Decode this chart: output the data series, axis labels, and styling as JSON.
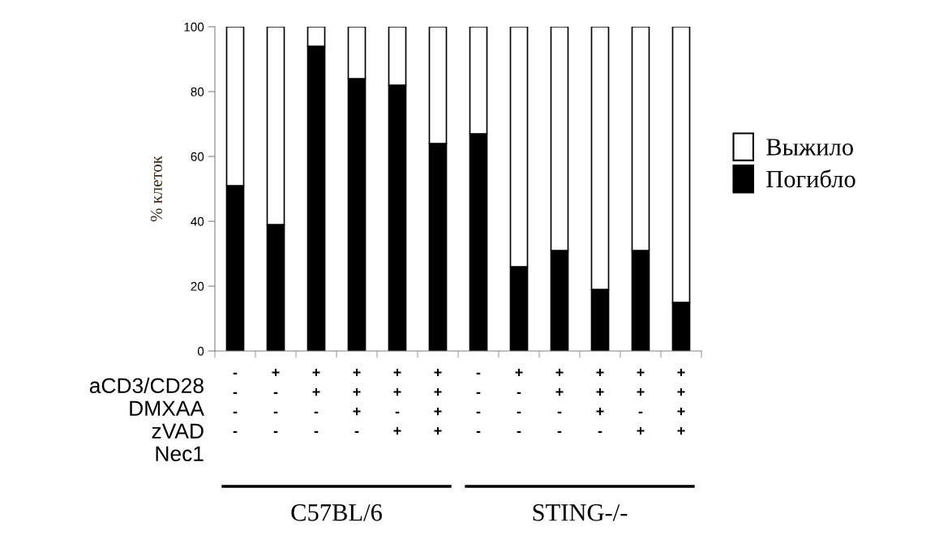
{
  "chart_data": {
    "type": "bar",
    "stacked": true,
    "ylabel": "% клеток",
    "categories": [
      "-\n-\n-\n-",
      "+\n-\n-\n-",
      "+\n+\n-\n-",
      "+\n+\n+\n-",
      "+\n+\n-\n+",
      "+\n+\n+\n+",
      "-\n-\n-\n-",
      "+\n-\n-\n-",
      "+\n+\n-\n-",
      "+\n+\n+\n-",
      "+\n+\n-\n+",
      "+\n+\n+\n+"
    ],
    "series": [
      {
        "name": "Погибло",
        "color": "#000000",
        "values": [
          51,
          39,
          94,
          84,
          82,
          64,
          67,
          26,
          31,
          19,
          31,
          15
        ]
      },
      {
        "name": "Выжило",
        "color": "#ffffff",
        "values": [
          49,
          61,
          6,
          16,
          18,
          36,
          33,
          74,
          69,
          81,
          69,
          85
        ]
      }
    ],
    "ylim": [
      0,
      100
    ],
    "yticks": [
      0,
      20,
      40,
      60,
      80,
      100
    ],
    "grid": false,
    "legend": "right",
    "annotations": [
      "aCD3/CD28",
      "DMXAA",
      "zVAD",
      "Nec1",
      "C57BL/6",
      "STING-/-"
    ]
  }
}
